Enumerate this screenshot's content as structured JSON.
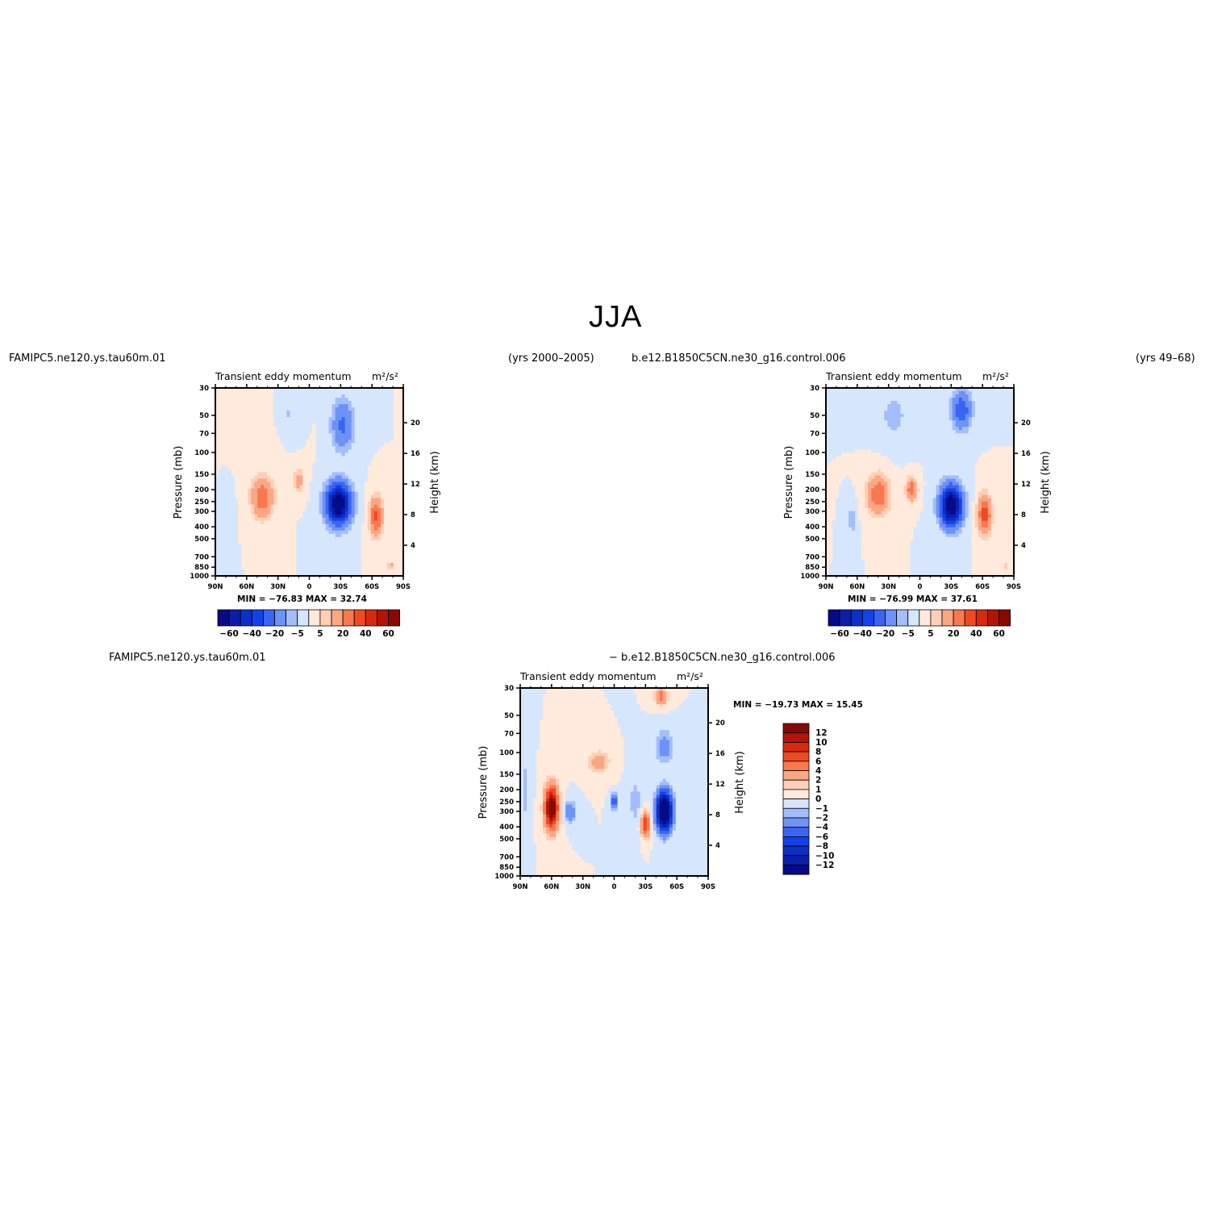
{
  "title": "JJA",
  "panels": [
    {
      "case_name": "FAMIPC5.ne120.ys.tau60m.01",
      "years": "(yrs 2000–2005)",
      "subtitle": "Transient eddy momentum",
      "units": "m²/s²",
      "min_max": "MIN = −76.83   MAX =  32.74",
      "ylabel": "Pressure (mb)",
      "ylabel_right": "Height (km)"
    },
    {
      "case_name": "b.e12.B1850C5CN.ne30_g16.control.006",
      "years": "(yrs 49–68)",
      "subtitle": "Transient eddy momentum",
      "units": "m²/s²",
      "min_max": "MIN = −76.99   MAX =  37.61",
      "ylabel": "Pressure (mb)",
      "ylabel_right": "Height (km)"
    },
    {
      "case_name": "FAMIPC5.ne120.ys.tau60m.01",
      "case_name_2": "− b.e12.B1850C5CN.ne30_g16.control.006",
      "subtitle": "Transient eddy momentum",
      "units": "m²/s²",
      "min_max": "MIN = −19.73   MAX =  15.45",
      "ylabel": "Pressure (mb)",
      "ylabel_right": "Height (km)"
    }
  ],
  "chart_data": [
    {
      "type": "heatmap",
      "x_ticks": [
        "90N",
        "60N",
        "30N",
        "0",
        "30S",
        "60S",
        "90S"
      ],
      "y_ticks": [
        "30",
        "50",
        "70",
        "100",
        "150",
        "200",
        "250",
        "300",
        "400",
        "500",
        "700",
        "850",
        "1000"
      ],
      "y_right_ticks": [
        "20",
        "16",
        "12",
        "8",
        "4"
      ],
      "levels": [
        -70,
        -60,
        -50,
        -40,
        -30,
        -20,
        -10,
        -5,
        0,
        5,
        10,
        20,
        30,
        40,
        50,
        60,
        70
      ],
      "colorbar_labels": [
        "−60",
        "−40",
        "−20",
        "−5",
        "5",
        "20",
        "40",
        "60"
      ],
      "colors": [
        "#070b87",
        "#0a1ea8",
        "#0c2fc8",
        "#1542e6",
        "#3a64f2",
        "#6e92f6",
        "#a3befa",
        "#d6e6fd",
        "#ffeadb",
        "#fdcfb6",
        "#fba784",
        "#f8784f",
        "#f04a22",
        "#d82a0c",
        "#b21405",
        "#870a02"
      ],
      "features": [
        {
          "lat": -28,
          "p": 260,
          "peak": -76.8,
          "w": 11,
          "h": 0.36
        },
        {
          "lat": -32,
          "p": 60,
          "peak": -22,
          "w": 10,
          "h": 0.45
        },
        {
          "lat": 45,
          "p": 230,
          "peak": 29,
          "w": 10,
          "h": 0.36
        },
        {
          "lat": 10,
          "p": 170,
          "peak": 14,
          "w": 5,
          "h": 0.22
        },
        {
          "lat": -64,
          "p": 330,
          "peak": 32.7,
          "w": 6,
          "h": 0.34
        },
        {
          "lat": -78,
          "p": 820,
          "peak": 12,
          "w": 3,
          "h": 0.08
        },
        {
          "lat": 60,
          "p": 60,
          "peak": 5,
          "w": 30,
          "h": 0.5
        },
        {
          "lat": 22,
          "p": 50,
          "peak": -6,
          "w": 12,
          "h": 0.4
        },
        {
          "lat": 80,
          "p": 300,
          "peak": -5,
          "w": 5,
          "h": 0.5
        }
      ]
    },
    {
      "type": "heatmap",
      "x_ticks": [
        "90N",
        "60N",
        "30N",
        "0",
        "30S",
        "60S",
        "90S"
      ],
      "y_ticks": [
        "30",
        "50",
        "70",
        "100",
        "150",
        "200",
        "250",
        "300",
        "400",
        "500",
        "700",
        "850",
        "1000"
      ],
      "y_right_ticks": [
        "20",
        "16",
        "12",
        "8",
        "4"
      ],
      "levels": [
        -70,
        -60,
        -50,
        -40,
        -30,
        -20,
        -10,
        -5,
        0,
        5,
        10,
        20,
        30,
        40,
        50,
        60,
        70
      ],
      "colorbar_labels": [
        "−60",
        "−40",
        "−20",
        "−5",
        "5",
        "20",
        "40",
        "60"
      ],
      "colors": [
        "#070b87",
        "#0a1ea8",
        "#0c2fc8",
        "#1542e6",
        "#3a64f2",
        "#6e92f6",
        "#a3befa",
        "#d6e6fd",
        "#ffeadb",
        "#fdcfb6",
        "#fba784",
        "#f8784f",
        "#f04a22",
        "#d82a0c",
        "#b21405",
        "#870a02"
      ],
      "features": [
        {
          "lat": -30,
          "p": 270,
          "peak": -77,
          "w": 10,
          "h": 0.36
        },
        {
          "lat": -40,
          "p": 45,
          "peak": -28,
          "w": 9,
          "h": 0.35
        },
        {
          "lat": 40,
          "p": 220,
          "peak": 30,
          "w": 10,
          "h": 0.34
        },
        {
          "lat": 8,
          "p": 200,
          "peak": 28,
          "w": 5,
          "h": 0.2
        },
        {
          "lat": -62,
          "p": 320,
          "peak": 37.6,
          "w": 6,
          "h": 0.34
        },
        {
          "lat": 65,
          "p": 350,
          "peak": -8,
          "w": 4,
          "h": 0.3
        },
        {
          "lat": -82,
          "p": 850,
          "peak": 10,
          "w": 3,
          "h": 0.08
        },
        {
          "lat": 25,
          "p": 50,
          "peak": -7,
          "w": 14,
          "h": 0.45
        }
      ]
    },
    {
      "type": "heatmap",
      "x_ticks": [
        "90N",
        "60N",
        "30N",
        "0",
        "30S",
        "60S",
        "90S"
      ],
      "y_ticks": [
        "30",
        "50",
        "70",
        "100",
        "150",
        "200",
        "250",
        "300",
        "400",
        "500",
        "700",
        "850",
        "1000"
      ],
      "y_right_ticks": [
        "20",
        "16",
        "12",
        "8",
        "4"
      ],
      "levels": [
        -14,
        -12,
        -10,
        -8,
        -6,
        -4,
        -2,
        -1,
        0,
        1,
        2,
        4,
        6,
        8,
        10,
        12,
        14
      ],
      "colorbar_labels": [
        "12",
        "10",
        "8",
        "6",
        "4",
        "2",
        "1",
        "0",
        "−1",
        "−2",
        "−4",
        "−6",
        "−8",
        "−10",
        "−12"
      ],
      "colors": [
        "#070b87",
        "#0a1ea8",
        "#0c2fc8",
        "#1542e6",
        "#3a64f2",
        "#6e92f6",
        "#a3befa",
        "#d6e6fd",
        "#ffeadb",
        "#fdcfb6",
        "#fba784",
        "#f8784f",
        "#f04a22",
        "#d82a0c",
        "#b21405",
        "#870a02"
      ],
      "features": [
        {
          "lat": -48,
          "p": 300,
          "peak": -19.7,
          "w": 7,
          "h": 0.34
        },
        {
          "lat": -48,
          "p": 90,
          "peak": -3,
          "w": 8,
          "h": 0.3
        },
        {
          "lat": 60,
          "p": 280,
          "peak": 15.4,
          "w": 6,
          "h": 0.38
        },
        {
          "lat": -30,
          "p": 380,
          "peak": 8,
          "w": 4,
          "h": 0.22
        },
        {
          "lat": -45,
          "p": 35,
          "peak": 5,
          "w": 6,
          "h": 0.15
        },
        {
          "lat": 42,
          "p": 300,
          "peak": -4,
          "w": 5,
          "h": 0.18
        },
        {
          "lat": 0,
          "p": 250,
          "peak": -8,
          "w": 2.5,
          "h": 0.12
        },
        {
          "lat": 15,
          "p": 120,
          "peak": 3,
          "w": 10,
          "h": 0.2
        },
        {
          "lat": -20,
          "p": 250,
          "peak": -1.5,
          "w": 6,
          "h": 0.5
        },
        {
          "lat": 85,
          "p": 200,
          "peak": -1.5,
          "w": 4,
          "h": 0.6
        }
      ]
    }
  ]
}
